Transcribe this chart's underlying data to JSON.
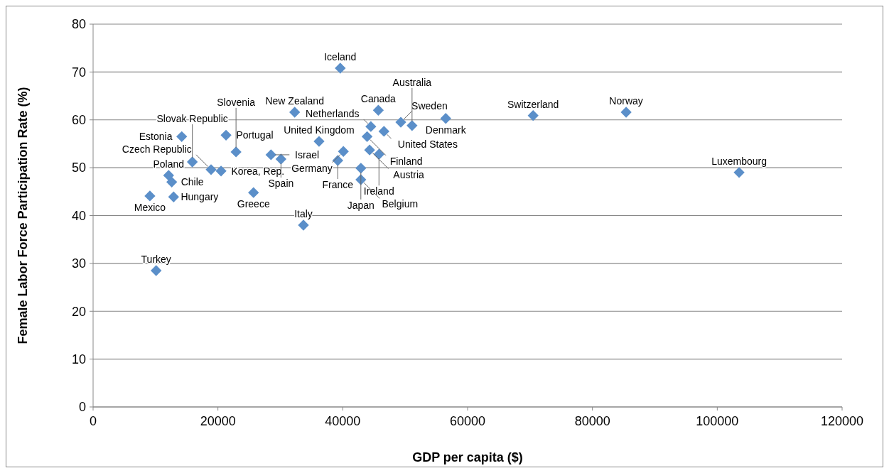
{
  "chart_data": {
    "type": "scatter",
    "xlabel": "GDP per capita ($)",
    "ylabel": "Female Labor Force Participation Rate (%)",
    "xlim": [
      0,
      120000
    ],
    "xticks": [
      0,
      20000,
      40000,
      60000,
      80000,
      100000,
      120000
    ],
    "ylim": [
      0,
      80
    ],
    "yticks": [
      0,
      10,
      20,
      30,
      40,
      50,
      60,
      70,
      80
    ],
    "grid": "y",
    "marker": "diamond",
    "series": [
      {
        "color": "#5b8fc9",
        "x": [
          10100,
          9100,
          12900,
          12600,
          12100,
          18900,
          20500,
          15900,
          14200,
          21300,
          22900,
          25700,
          28500,
          30100,
          33700,
          32300,
          39600,
          36200,
          45700,
          44500,
          46600,
          43900,
          44300,
          45800,
          40100,
          39200,
          42900,
          42900,
          49300,
          51100,
          56500,
          70500,
          85400,
          103500
        ],
        "values": [
          28.5,
          44.1,
          43.9,
          47.0,
          48.4,
          49.6,
          49.3,
          51.2,
          56.5,
          56.8,
          53.3,
          44.8,
          52.7,
          51.8,
          38.0,
          61.6,
          70.8,
          55.5,
          62.0,
          58.6,
          57.6,
          56.5,
          53.7,
          52.8,
          53.4,
          51.5,
          49.9,
          47.5,
          59.5,
          58.8,
          60.3,
          60.9,
          61.6,
          49.0
        ]
      }
    ],
    "annotations": [
      {
        "text": "Turkey",
        "x": 10100,
        "y": 28.5
      },
      {
        "text": "Mexico",
        "x": 9100,
        "y": 44.1
      },
      {
        "text": "Hungary",
        "x": 12900,
        "y": 43.9
      },
      {
        "text": "Chile",
        "x": 12600,
        "y": 47.0
      },
      {
        "text": "Poland",
        "x": 12100,
        "y": 48.4
      },
      {
        "text": "Czech Republic",
        "x": 18900,
        "y": 49.6
      },
      {
        "text": "Korea, Rep.",
        "x": 20500,
        "y": 49.3
      },
      {
        "text": "Slovak Republic",
        "x": 15900,
        "y": 51.2
      },
      {
        "text": "Estonia",
        "x": 14200,
        "y": 56.5
      },
      {
        "text": "Portugal",
        "x": 21300,
        "y": 56.8
      },
      {
        "text": "Slovenia",
        "x": 22900,
        "y": 53.3
      },
      {
        "text": "Greece",
        "x": 25700,
        "y": 44.8
      },
      {
        "text": "Israel",
        "x": 28500,
        "y": 52.7
      },
      {
        "text": "Spain",
        "x": 30100,
        "y": 51.8
      },
      {
        "text": "Italy",
        "x": 33700,
        "y": 38.0
      },
      {
        "text": "New Zealand",
        "x": 32300,
        "y": 61.6
      },
      {
        "text": "Iceland",
        "x": 39600,
        "y": 70.8
      },
      {
        "text": "United Kingdom",
        "x": 36200,
        "y": 55.5
      },
      {
        "text": "Canada",
        "x": 45700,
        "y": 62.0
      },
      {
        "text": "Netherlands",
        "x": 44500,
        "y": 58.6
      },
      {
        "text": "United States",
        "x": 46600,
        "y": 57.6
      },
      {
        "text": "Finland",
        "x": 43900,
        "y": 56.5
      },
      {
        "text": "Austria",
        "x": 44300,
        "y": 53.7
      },
      {
        "text": "Ireland",
        "x": 45800,
        "y": 52.8
      },
      {
        "text": "Germany",
        "x": 40100,
        "y": 53.4
      },
      {
        "text": "France",
        "x": 39200,
        "y": 51.5
      },
      {
        "text": "Japan",
        "x": 42900,
        "y": 49.9
      },
      {
        "text": "Belgium",
        "x": 42900,
        "y": 47.5
      },
      {
        "text": "Sweden",
        "x": 49300,
        "y": 59.5
      },
      {
        "text": "Australia",
        "x": 51100,
        "y": 58.8
      },
      {
        "text": "Denmark",
        "x": 56500,
        "y": 60.3
      },
      {
        "text": "Switzerland",
        "x": 70500,
        "y": 60.9
      },
      {
        "text": "Norway",
        "x": 85400,
        "y": 61.6
      },
      {
        "text": "Luxembourg",
        "x": 103500,
        "y": 49.0
      }
    ]
  }
}
